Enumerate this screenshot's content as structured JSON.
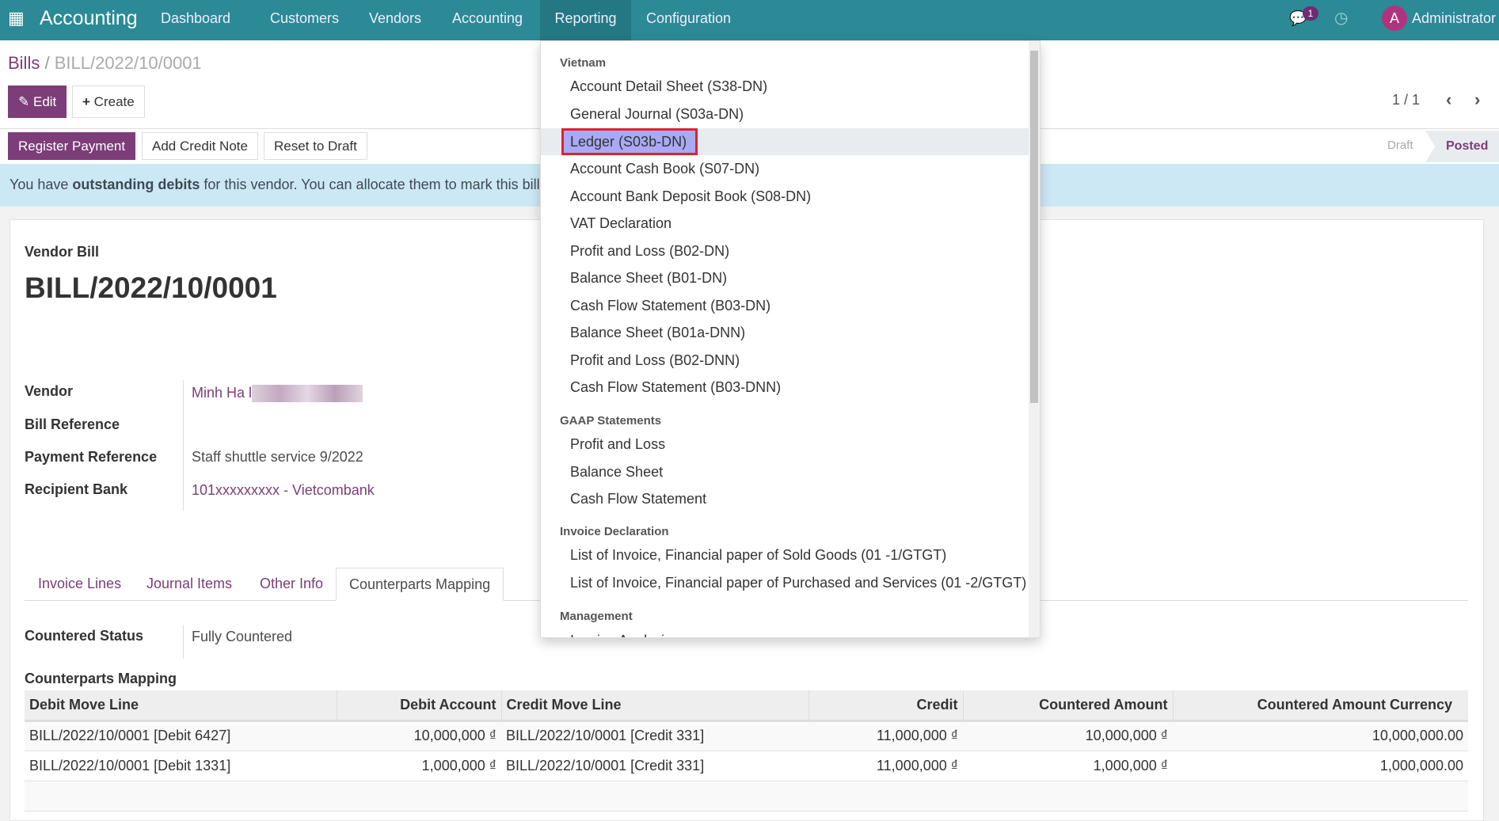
{
  "navbar": {
    "app": "Accounting",
    "menu": [
      "Dashboard",
      "Customers",
      "Vendors",
      "Accounting",
      "Reporting",
      "Configuration"
    ],
    "active": "Reporting",
    "message_count": "1",
    "user_initial": "A",
    "user": "Administrator",
    "color": "#2b8a96"
  },
  "breadcrumb": {
    "parent": "Bills",
    "sep": "/",
    "current": "BILL/2022/10/0001"
  },
  "toolbar": {
    "edit": "Edit",
    "create": "Create",
    "pager": "1 / 1"
  },
  "actions": {
    "register_payment": "Register Payment",
    "add_credit_note": "Add Credit Note",
    "reset_to_draft": "Reset to Draft"
  },
  "status": {
    "draft": "Draft",
    "posted": "Posted",
    "current": "Posted"
  },
  "alert": {
    "prefix": "You have ",
    "bold": "outstanding debits",
    "suffix": " for this vendor. You can allocate them to mark this bill as"
  },
  "form": {
    "type": "Vendor Bill",
    "name": "BILL/2022/10/0001",
    "fields": [
      {
        "label": "Vendor",
        "value": "Minh Ha l"
      },
      {
        "label": "Bill Reference",
        "value": ""
      },
      {
        "label": "Payment Reference",
        "value": "Staff shuttle service 9/2022"
      },
      {
        "label": "Recipient Bank",
        "value": "101xxxxxxxxx - Vietcombank"
      }
    ]
  },
  "tabs": [
    "Invoice Lines",
    "Journal Items",
    "Other Info",
    "Counterparts Mapping"
  ],
  "active_tab": "Counterparts Mapping",
  "countered": {
    "label": "Countered Status",
    "value": "Fully Countered"
  },
  "mapping": {
    "title": "Counterparts Mapping",
    "columns": [
      "Debit Move Line",
      "Debit Account",
      "Credit Move Line",
      "Credit",
      "Countered Amount",
      "Countered Amount Currency"
    ],
    "rows": [
      [
        "BILL/2022/10/0001 [Debit 6427]",
        "10,000,000 ₫",
        "BILL/2022/10/0001 [Credit 331]",
        "11,000,000 ₫",
        "10,000,000 ₫",
        "10,000,000.00"
      ],
      [
        "BILL/2022/10/0001 [Debit 1331]",
        "1,000,000 ₫",
        "BILL/2022/10/0001 [Credit 331]",
        "11,000,000 ₫",
        "1,000,000 ₫",
        "1,000,000.00"
      ]
    ]
  },
  "reporting_menu": {
    "sections": [
      {
        "header": "Vietnam",
        "items": [
          "Account Detail Sheet (S38-DN)",
          "General Journal (S03a-DN)",
          "Ledger (S03b-DN)",
          "Account Cash Book (S07-DN)",
          "Account Bank Deposit Book (S08-DN)",
          "VAT Declaration",
          "Profit and Loss (B02-DN)",
          "Balance Sheet (B01-DN)",
          "Cash Flow Statement (B03-DN)",
          "Balance Sheet (B01a-DNN)",
          "Profit and Loss (B02-DNN)",
          "Cash Flow Statement (B03-DNN)"
        ]
      },
      {
        "header": "GAAP Statements",
        "items": [
          "Profit and Loss",
          "Balance Sheet",
          "Cash Flow Statement"
        ]
      },
      {
        "header": "Invoice Declaration",
        "items": [
          "List of Invoice, Financial paper of Sold Goods (01 -1/GTGT)",
          "List of Invoice, Financial paper of Purchased and Services (01 -2/GTGT)"
        ]
      },
      {
        "header": "Management",
        "items": [
          "Invoice Analysis"
        ]
      }
    ],
    "highlighted": "Ledger (S03b-DN)"
  }
}
